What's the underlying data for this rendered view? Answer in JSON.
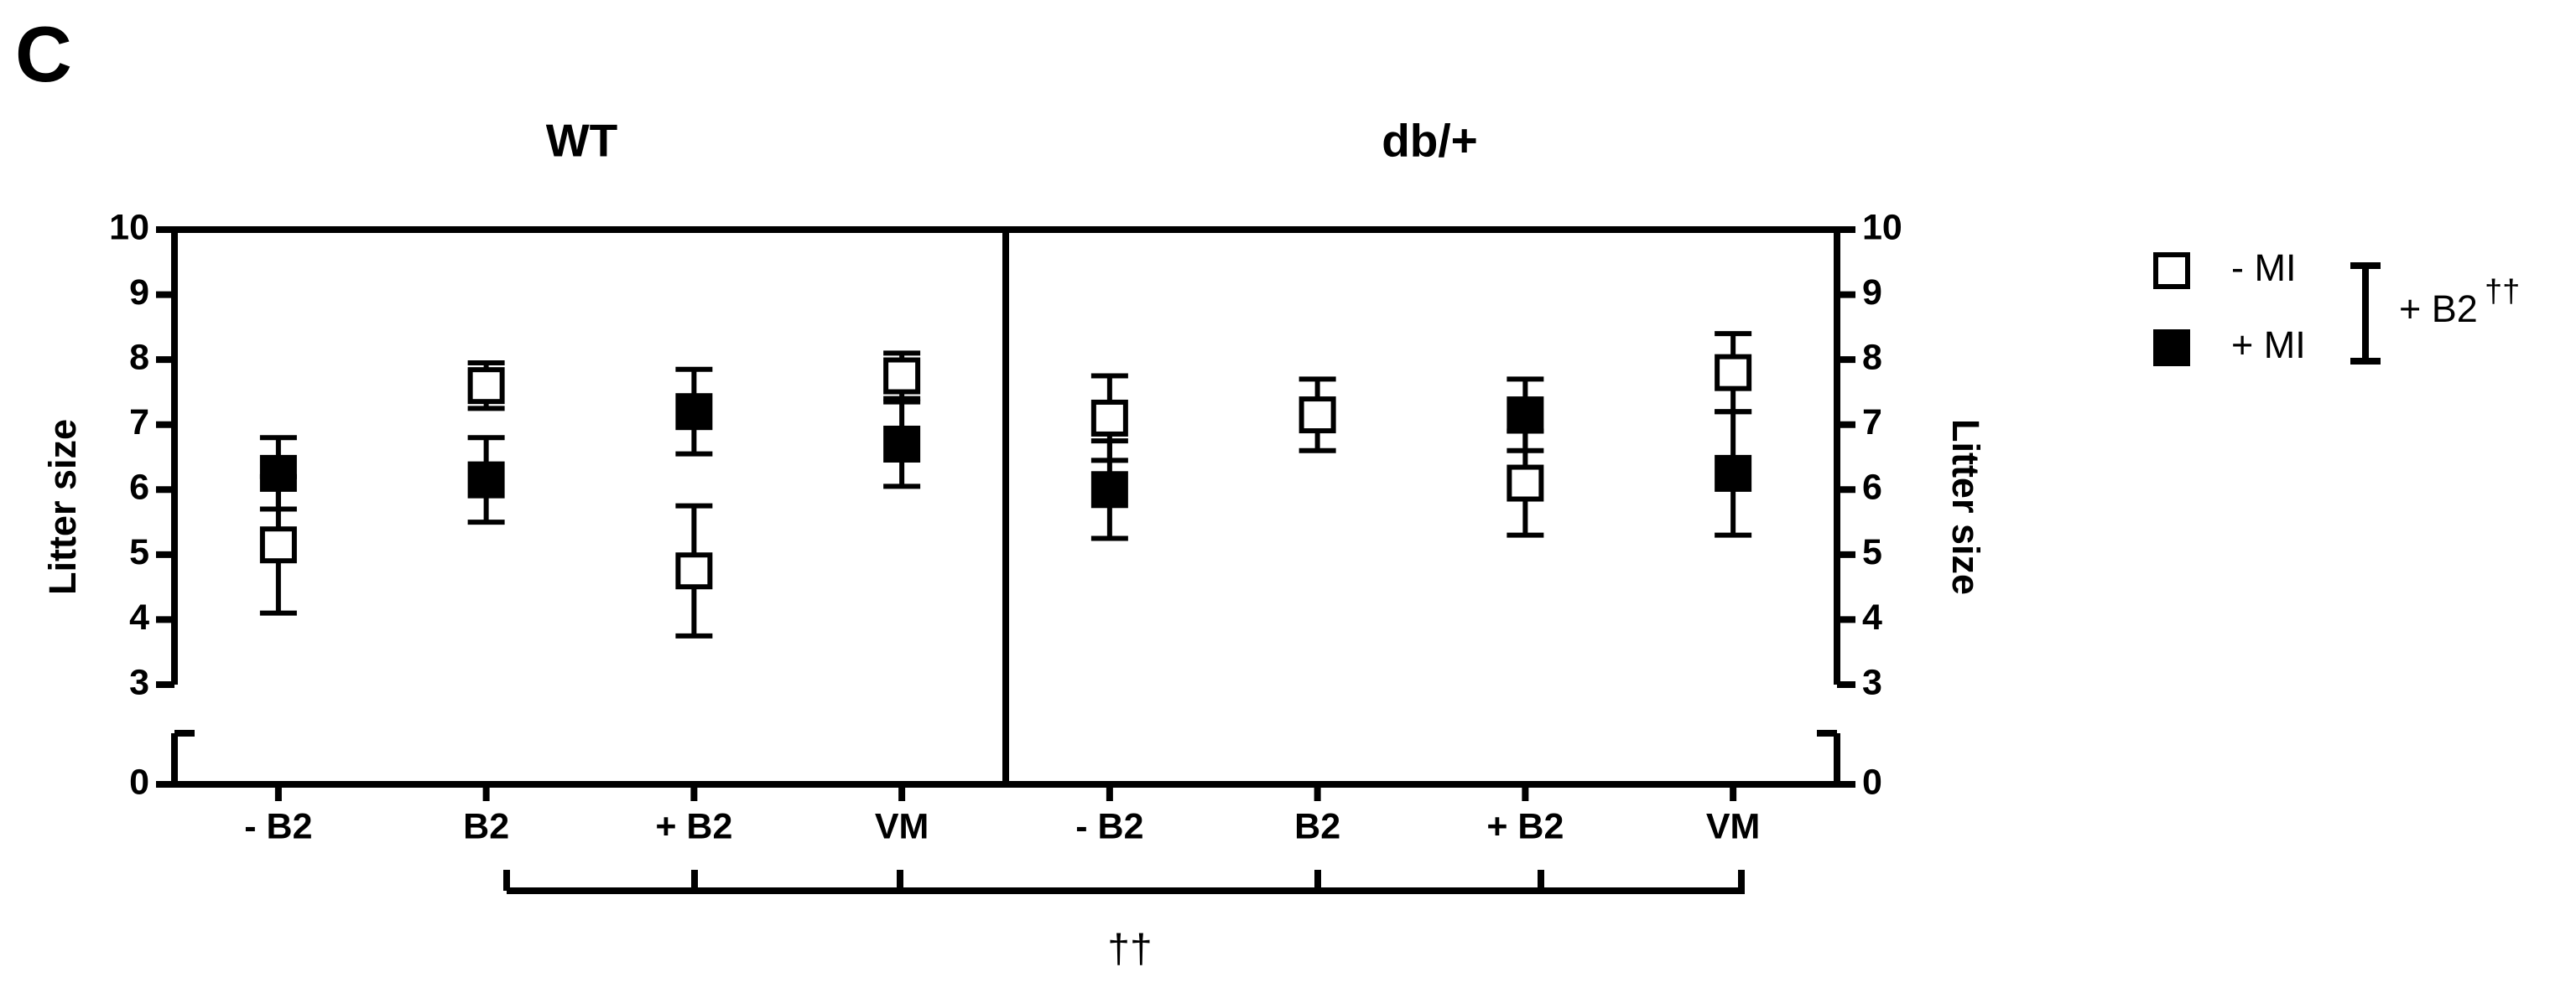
{
  "panel_label": "C",
  "annotations": {
    "legend_bracket": "+ B2",
    "legend_bracket_mark": "††",
    "bottom_bracket_mark": "††"
  },
  "chart_data": [
    {
      "type": "scatter",
      "title": "WT",
      "ylabel": "Litter size",
      "categories": [
        "- B2",
        "B2",
        "+ B2",
        "VM"
      ],
      "ylim": [
        0,
        10
      ],
      "axis_break": 3,
      "yticks": [
        0,
        3,
        4,
        5,
        6,
        7,
        8,
        9,
        10
      ],
      "yaxis_side": "left",
      "series": [
        {
          "name": "- MI",
          "color": "#ffffff",
          "values": [
            5.15,
            7.6,
            4.75,
            7.75
          ],
          "errors": [
            1.05,
            0.35,
            1.0,
            0.35
          ]
        },
        {
          "name": "+ MI",
          "color": "#000000",
          "values": [
            6.25,
            6.15,
            7.2,
            6.7
          ],
          "errors": [
            0.55,
            0.65,
            0.65,
            0.65
          ]
        }
      ]
    },
    {
      "type": "scatter",
      "title": "db/+",
      "ylabel": "Litter size",
      "categories": [
        "- B2",
        "B2",
        "+ B2",
        "VM"
      ],
      "ylim": [
        0,
        10
      ],
      "axis_break": 3,
      "yticks": [
        0,
        3,
        4,
        5,
        6,
        7,
        8,
        9,
        10
      ],
      "yaxis_side": "right",
      "series": [
        {
          "name": "- MI",
          "color": "#ffffff",
          "values": [
            7.1,
            7.15,
            6.1,
            7.8
          ],
          "errors": [
            0.65,
            0.55,
            0.8,
            0.6
          ]
        },
        {
          "name": "+ MI",
          "color": "#000000",
          "values": [
            6.0,
            null,
            7.15,
            6.25
          ],
          "errors": [
            0.75,
            null,
            0.55,
            0.95
          ]
        }
      ]
    }
  ]
}
